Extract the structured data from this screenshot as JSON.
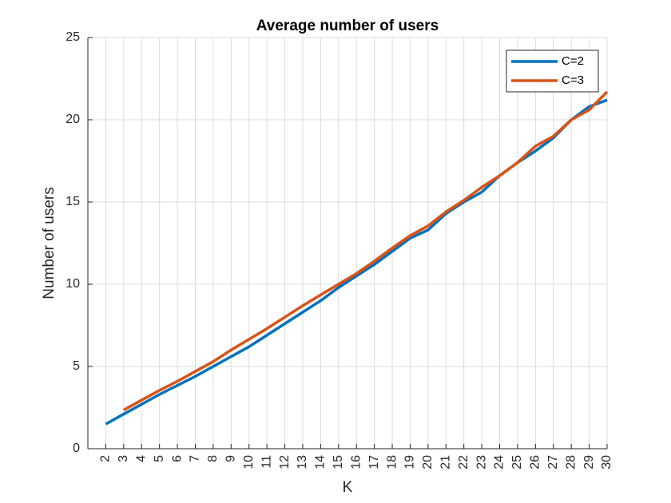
{
  "chart_data": {
    "type": "line",
    "title": "Average number of users",
    "xlabel": "K",
    "ylabel": "Number of users",
    "x_ticks": [
      2,
      3,
      4,
      5,
      6,
      7,
      8,
      9,
      10,
      11,
      12,
      13,
      14,
      15,
      16,
      17,
      18,
      19,
      20,
      21,
      22,
      23,
      24,
      25,
      26,
      27,
      28,
      29,
      30
    ],
    "y_ticks": [
      0,
      5,
      10,
      15,
      20,
      25
    ],
    "xlim": [
      1,
      30
    ],
    "ylim": [
      0,
      25
    ],
    "grid": true,
    "legend_position": "top-right",
    "series": [
      {
        "name": "C=2",
        "color": "#0072BD",
        "x": [
          2,
          3,
          4,
          5,
          6,
          7,
          8,
          9,
          10,
          11,
          12,
          13,
          14,
          15,
          16,
          17,
          18,
          19,
          20,
          21,
          22,
          23,
          24,
          25,
          26,
          27,
          28,
          29,
          30
        ],
        "y": [
          1.5,
          2.1,
          2.7,
          3.3,
          3.85,
          4.4,
          5.0,
          5.6,
          6.2,
          6.9,
          7.6,
          8.3,
          9.0,
          9.8,
          10.5,
          11.2,
          12.0,
          12.8,
          13.3,
          14.3,
          15.0,
          15.6,
          16.6,
          17.4,
          18.1,
          18.9,
          20.0,
          20.8,
          21.2
        ]
      },
      {
        "name": "C=3",
        "color": "#D95319",
        "x": [
          3,
          4,
          5,
          6,
          7,
          8,
          9,
          10,
          11,
          12,
          13,
          14,
          15,
          16,
          17,
          18,
          19,
          20,
          21,
          22,
          23,
          24,
          25,
          26,
          27,
          28,
          29,
          30
        ],
        "y": [
          2.35,
          2.95,
          3.55,
          4.1,
          4.7,
          5.3,
          6.0,
          6.65,
          7.3,
          8.0,
          8.7,
          9.35,
          10.0,
          10.65,
          11.4,
          12.2,
          12.95,
          13.55,
          14.4,
          15.1,
          15.9,
          16.6,
          17.4,
          18.4,
          19.0,
          20.0,
          20.6,
          21.7
        ]
      }
    ]
  }
}
